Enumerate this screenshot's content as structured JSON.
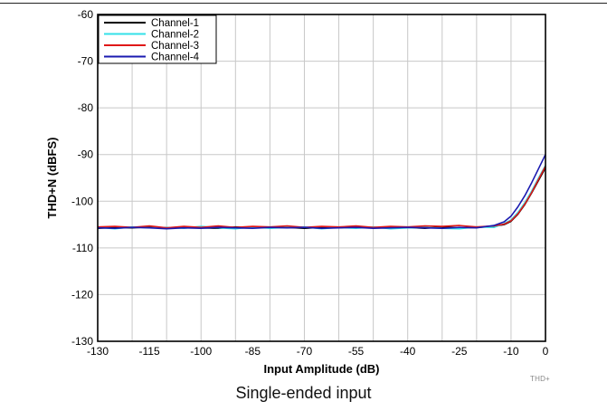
{
  "figure_id": "THD+",
  "caption": "Single-ended input",
  "chart_data": {
    "type": "line",
    "title": "",
    "xlabel": "Input Amplitude (dB)",
    "ylabel": "THD+N (dBFS)",
    "xlim": [
      -130,
      0
    ],
    "ylim": [
      -130,
      -60
    ],
    "xticks": [
      -130,
      -115,
      -100,
      -85,
      -70,
      -55,
      -40,
      -25,
      -10,
      0
    ],
    "yticks": [
      -60,
      -70,
      -80,
      -90,
      -100,
      -110,
      -120,
      -130
    ],
    "xgrid": [
      -130,
      -120,
      -110,
      -100,
      -90,
      -80,
      -70,
      -60,
      -50,
      -40,
      -30,
      -20,
      -10,
      0
    ],
    "grid": true,
    "legend_position": "top-left",
    "x": [
      -130,
      -125,
      -120,
      -115,
      -110,
      -105,
      -100,
      -95,
      -90,
      -85,
      -80,
      -75,
      -70,
      -65,
      -60,
      -55,
      -50,
      -45,
      -40,
      -35,
      -30,
      -25,
      -20,
      -15,
      -12,
      -10,
      -8,
      -6,
      -4,
      -2,
      0
    ],
    "series": [
      {
        "name": "Channel-1",
        "color": "#000000",
        "values": [
          -105.8,
          -105.6,
          -105.7,
          -105.5,
          -105.8,
          -105.6,
          -105.7,
          -105.8,
          -105.5,
          -105.6,
          -105.7,
          -105.6,
          -105.8,
          -105.6,
          -105.7,
          -105.5,
          -105.6,
          -105.7,
          -105.6,
          -105.8,
          -105.5,
          -105.7,
          -105.6,
          -105.4,
          -105.0,
          -104.3,
          -102.8,
          -100.7,
          -98.2,
          -95.5,
          -92.8
        ]
      },
      {
        "name": "Channel-2",
        "color": "#33E0E8",
        "values": [
          -105.6,
          -105.9,
          -105.5,
          -105.7,
          -105.6,
          -105.8,
          -105.4,
          -105.7,
          -105.9,
          -105.5,
          -105.8,
          -105.6,
          -105.5,
          -105.9,
          -105.6,
          -105.8,
          -105.5,
          -105.9,
          -105.7,
          -105.6,
          -105.8,
          -105.9,
          -105.5,
          -105.6,
          -104.8,
          -104.0,
          -102.4,
          -100.3,
          -97.8,
          -95.0,
          -92.3
        ]
      },
      {
        "name": "Channel-3",
        "color": "#E01818",
        "values": [
          -105.5,
          -105.4,
          -105.6,
          -105.3,
          -105.7,
          -105.4,
          -105.6,
          -105.3,
          -105.6,
          -105.4,
          -105.5,
          -105.3,
          -105.6,
          -105.4,
          -105.5,
          -105.3,
          -105.6,
          -105.4,
          -105.5,
          -105.3,
          -105.4,
          -105.2,
          -105.5,
          -105.3,
          -104.9,
          -104.2,
          -102.7,
          -100.6,
          -98.1,
          -95.3,
          -92.5
        ]
      },
      {
        "name": "Channel-4",
        "color": "#1A1AB0",
        "values": [
          -105.7,
          -105.8,
          -105.6,
          -105.7,
          -105.9,
          -105.7,
          -105.8,
          -105.6,
          -105.7,
          -105.8,
          -105.6,
          -105.7,
          -105.6,
          -105.8,
          -105.7,
          -105.6,
          -105.8,
          -105.7,
          -105.6,
          -105.7,
          -105.8,
          -105.6,
          -105.7,
          -105.2,
          -104.4,
          -103.2,
          -101.2,
          -98.8,
          -96.0,
          -93.0,
          -90.0
        ]
      }
    ]
  }
}
